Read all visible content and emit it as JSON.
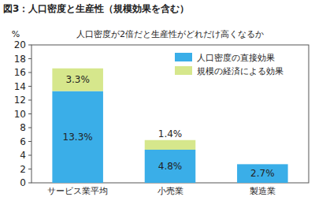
{
  "chart_data": {
    "type": "bar",
    "title": "図3：人口密度と生産性（規模効果を含む）",
    "subtitle": "人口密度が2倍だと生産性がどれだけ高くなるか",
    "y_label": "%",
    "categories": [
      "サービス業平均",
      "小売業",
      "製造業"
    ],
    "series": [
      {
        "name": "人口密度の直接効果",
        "color": "#3aaee8",
        "values": [
          13.3,
          4.8,
          2.7
        ],
        "value_labels": [
          "13.3%",
          "4.8%",
          "2.7%"
        ]
      },
      {
        "name": "規模の経済による効果",
        "color": "#d6e78c",
        "values": [
          3.3,
          1.4,
          null
        ],
        "value_labels": [
          "3.3%",
          "1.4%",
          null
        ]
      }
    ],
    "stacked": true,
    "data_labels": true,
    "legend": "top-right",
    "grid": false,
    "ylim": [
      0,
      20
    ],
    "yticks": [
      0,
      2,
      4,
      6,
      8,
      10,
      12,
      14,
      16,
      18,
      20
    ]
  }
}
